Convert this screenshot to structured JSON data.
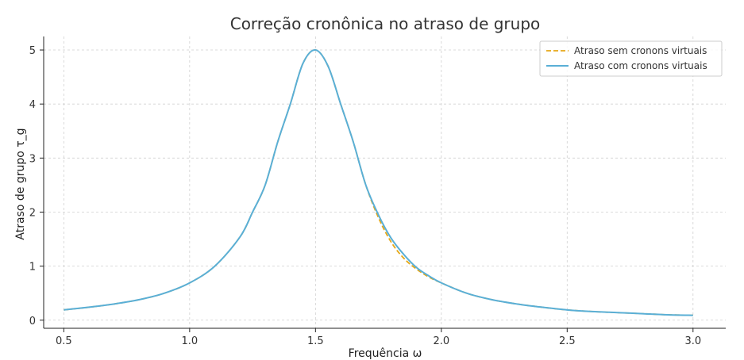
{
  "chart_data": {
    "type": "line",
    "title": "Correção cronônica no atraso de grupo",
    "xlabel": "Frequência ω",
    "ylabel": "Atraso de grupo τ_g",
    "xlim": [
      0.42,
      3.13
    ],
    "ylim": [
      -0.15,
      5.25
    ],
    "xticks": [
      0.5,
      1.0,
      1.5,
      2.0,
      2.5,
      3.0
    ],
    "xtick_labels": [
      "0.5",
      "1.0",
      "1.5",
      "2.0",
      "2.5",
      "3.0"
    ],
    "yticks": [
      0,
      1,
      2,
      3,
      4,
      5
    ],
    "ytick_labels": [
      "0",
      "1",
      "2",
      "3",
      "4",
      "5"
    ],
    "grid": true,
    "legend_position": "top-right",
    "series": [
      {
        "name": "Atraso sem cronons virtuais",
        "color": "#e6a817",
        "style": "dashed",
        "x": [
          0.5,
          0.6,
          0.7,
          0.8,
          0.9,
          1.0,
          1.1,
          1.2,
          1.25,
          1.3,
          1.35,
          1.4,
          1.45,
          1.5,
          1.55,
          1.6,
          1.65,
          1.7,
          1.75,
          1.8,
          1.85,
          1.9,
          1.95,
          2.0,
          2.1,
          2.2,
          2.3,
          2.4,
          2.5,
          2.6,
          2.7,
          2.8,
          2.9,
          3.0
        ],
        "y": [
          0.19,
          0.24,
          0.3,
          0.38,
          0.5,
          0.69,
          1.0,
          1.54,
          2.0,
          2.5,
          3.3,
          4.0,
          4.75,
          5.0,
          4.7,
          4.0,
          3.3,
          2.5,
          1.9,
          1.45,
          1.15,
          0.95,
          0.8,
          0.69,
          0.5,
          0.38,
          0.3,
          0.24,
          0.19,
          0.16,
          0.14,
          0.12,
          0.1,
          0.09
        ]
      },
      {
        "name": "Atraso com cronons virtuais",
        "color": "#5aafd6",
        "style": "solid",
        "x": [
          0.5,
          0.6,
          0.7,
          0.8,
          0.9,
          1.0,
          1.1,
          1.2,
          1.25,
          1.3,
          1.35,
          1.4,
          1.45,
          1.5,
          1.55,
          1.6,
          1.65,
          1.7,
          1.75,
          1.8,
          1.85,
          1.9,
          1.95,
          2.0,
          2.1,
          2.2,
          2.3,
          2.4,
          2.5,
          2.6,
          2.7,
          2.8,
          2.9,
          3.0
        ],
        "y": [
          0.19,
          0.24,
          0.3,
          0.38,
          0.5,
          0.69,
          1.0,
          1.54,
          2.0,
          2.5,
          3.3,
          4.0,
          4.75,
          5.0,
          4.7,
          4.0,
          3.3,
          2.5,
          1.95,
          1.52,
          1.22,
          0.98,
          0.82,
          0.69,
          0.5,
          0.38,
          0.3,
          0.24,
          0.19,
          0.16,
          0.14,
          0.12,
          0.1,
          0.09
        ]
      }
    ]
  }
}
